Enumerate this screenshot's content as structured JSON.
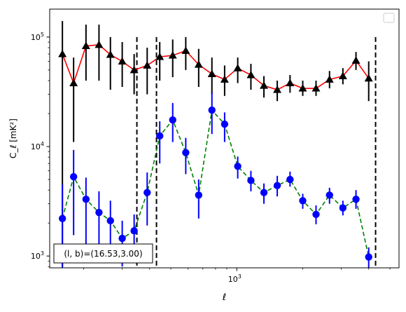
{
  "chart_data": {
    "type": "scatter",
    "xlabel": "ℓ",
    "ylabel": "C_ℓ [mK²]",
    "xscale": "log",
    "yscale": "log",
    "xlim": [
      140,
      5500
    ],
    "ylim": [
      780,
      180000
    ],
    "x_ticks": [
      {
        "value": 1000,
        "base": "10",
        "exp": "3"
      }
    ],
    "y_ticks": [
      {
        "value": 1000,
        "base": "10",
        "exp": "3"
      },
      {
        "value": 10000,
        "base": "10",
        "exp": "4"
      },
      {
        "value": 100000,
        "base": "10",
        "exp": "5"
      }
    ],
    "vertical_lines": [
      350,
      430,
      4300
    ],
    "annotation": "(l, b)=(16.53,3.00)",
    "legend": {
      "placement": "top-right",
      "entries": []
    },
    "colors": {
      "upper_line": "#ff0000",
      "upper_markers": "#000000",
      "lower_line": "#008000",
      "lower_markers": "#0000ff",
      "vlines": "#000000"
    },
    "series": [
      {
        "marker": "triangle",
        "linestyle": "solid",
        "points": [
          {
            "x": 160,
            "y": 70000,
            "lo": 800,
            "hi": 140000
          },
          {
            "x": 180,
            "y": 38000,
            "lo": 11000,
            "hi": 65000
          },
          {
            "x": 205,
            "y": 83000,
            "lo": 40000,
            "hi": 130000
          },
          {
            "x": 235,
            "y": 85000,
            "lo": 40000,
            "hi": 130000
          },
          {
            "x": 265,
            "y": 69000,
            "lo": 33000,
            "hi": 100000
          },
          {
            "x": 300,
            "y": 60000,
            "lo": 35000,
            "hi": 90000
          },
          {
            "x": 340,
            "y": 50000,
            "lo": 30000,
            "hi": 70000
          },
          {
            "x": 390,
            "y": 55000,
            "lo": 30000,
            "hi": 80000
          },
          {
            "x": 445,
            "y": 66000,
            "lo": 40000,
            "hi": 90000
          },
          {
            "x": 510,
            "y": 68000,
            "lo": 43000,
            "hi": 95000
          },
          {
            "x": 585,
            "y": 75000,
            "lo": 50000,
            "hi": 100000
          },
          {
            "x": 670,
            "y": 56000,
            "lo": 35000,
            "hi": 78000
          },
          {
            "x": 770,
            "y": 46000,
            "lo": 30000,
            "hi": 65000
          },
          {
            "x": 880,
            "y": 41000,
            "lo": 29000,
            "hi": 55000
          },
          {
            "x": 1010,
            "y": 52000,
            "lo": 38000,
            "hi": 65000
          },
          {
            "x": 1160,
            "y": 45000,
            "lo": 33000,
            "hi": 57000
          },
          {
            "x": 1330,
            "y": 36000,
            "lo": 28000,
            "hi": 44000
          },
          {
            "x": 1530,
            "y": 33000,
            "lo": 26000,
            "hi": 40000
          },
          {
            "x": 1750,
            "y": 38000,
            "lo": 31000,
            "hi": 45000
          },
          {
            "x": 2000,
            "y": 34000,
            "lo": 29000,
            "hi": 40000
          },
          {
            "x": 2300,
            "y": 34000,
            "lo": 29000,
            "hi": 40000
          },
          {
            "x": 2650,
            "y": 41000,
            "lo": 34000,
            "hi": 49000
          },
          {
            "x": 3050,
            "y": 44000,
            "lo": 37000,
            "hi": 52000
          },
          {
            "x": 3500,
            "y": 61000,
            "lo": 50000,
            "hi": 73000
          },
          {
            "x": 4000,
            "y": 42000,
            "lo": 26000,
            "hi": 60000
          }
        ]
      },
      {
        "marker": "circle",
        "linestyle": "dashed",
        "points": [
          {
            "x": 160,
            "y": 2200,
            "lo": 780,
            "hi": 4500
          },
          {
            "x": 180,
            "y": 5300,
            "lo": 1550,
            "hi": 9300
          },
          {
            "x": 205,
            "y": 3300,
            "lo": 1150,
            "hi": 5200
          },
          {
            "x": 235,
            "y": 2500,
            "lo": 1050,
            "hi": 3900
          },
          {
            "x": 265,
            "y": 2100,
            "lo": 1050,
            "hi": 3200
          },
          {
            "x": 300,
            "y": 1450,
            "lo": 800,
            "hi": 2100
          },
          {
            "x": 340,
            "y": 1700,
            "lo": 1100,
            "hi": 2400
          },
          {
            "x": 390,
            "y": 3800,
            "lo": 1900,
            "hi": 5800
          },
          {
            "x": 445,
            "y": 12500,
            "lo": 7000,
            "hi": 17000
          },
          {
            "x": 510,
            "y": 17500,
            "lo": 11000,
            "hi": 25000
          },
          {
            "x": 585,
            "y": 8800,
            "lo": 5600,
            "hi": 12000
          },
          {
            "x": 670,
            "y": 3600,
            "lo": 2200,
            "hi": 5000
          },
          {
            "x": 770,
            "y": 21500,
            "lo": 13000,
            "hi": 31000
          },
          {
            "x": 880,
            "y": 16000,
            "lo": 11000,
            "hi": 20500
          },
          {
            "x": 1010,
            "y": 6600,
            "lo": 5100,
            "hi": 8100
          },
          {
            "x": 1160,
            "y": 4900,
            "lo": 3900,
            "hi": 6000
          },
          {
            "x": 1330,
            "y": 3800,
            "lo": 3000,
            "hi": 4600
          },
          {
            "x": 1530,
            "y": 4400,
            "lo": 3500,
            "hi": 5400
          },
          {
            "x": 1750,
            "y": 5000,
            "lo": 4300,
            "hi": 5900
          },
          {
            "x": 2000,
            "y": 3200,
            "lo": 2700,
            "hi": 3700
          },
          {
            "x": 2300,
            "y": 2400,
            "lo": 1950,
            "hi": 2900
          },
          {
            "x": 2650,
            "y": 3600,
            "lo": 3000,
            "hi": 4200
          },
          {
            "x": 3050,
            "y": 2750,
            "lo": 2350,
            "hi": 3200
          },
          {
            "x": 3500,
            "y": 3300,
            "lo": 2700,
            "hi": 4000
          },
          {
            "x": 4000,
            "y": 980,
            "lo": 780,
            "hi": 1200
          }
        ]
      }
    ]
  }
}
